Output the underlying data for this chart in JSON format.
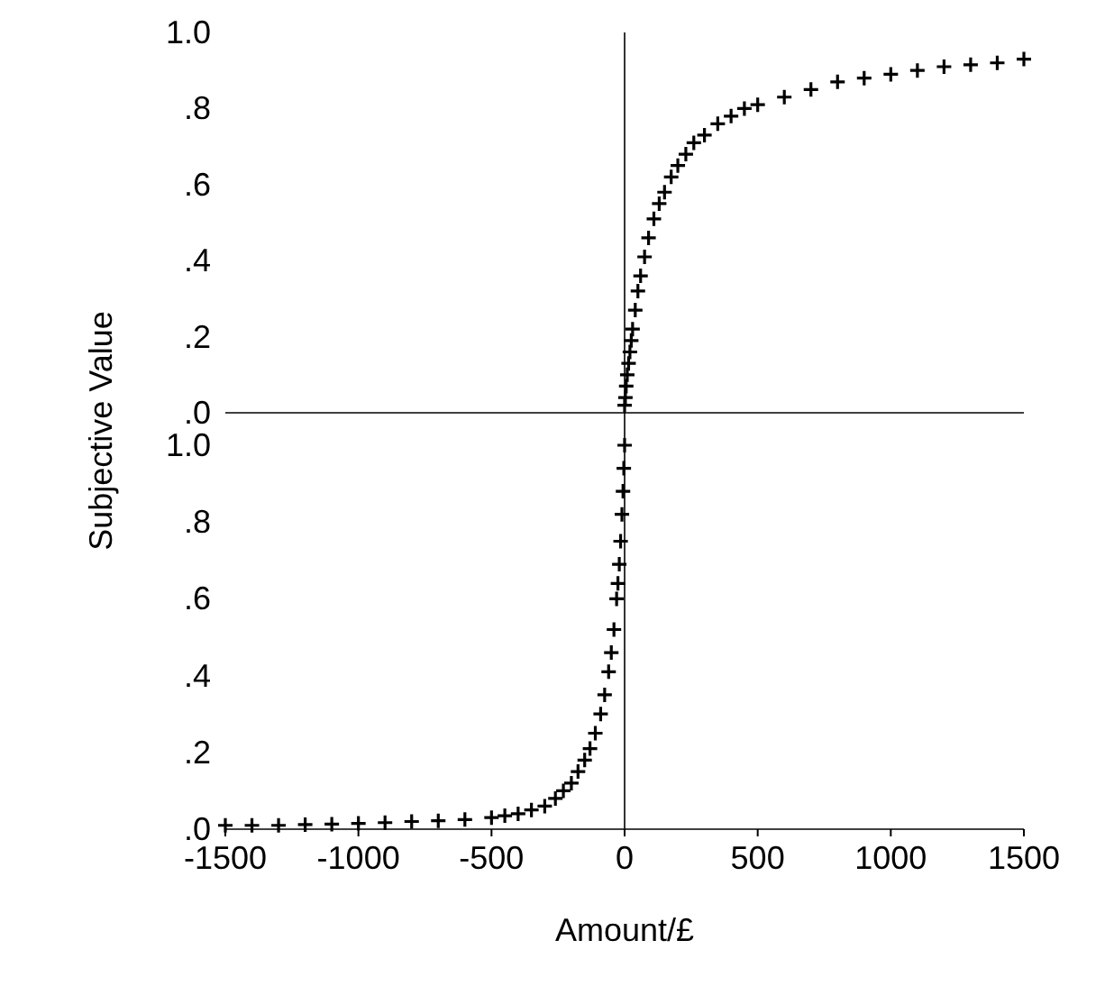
{
  "chart_data": [
    {
      "type": "scatter",
      "ylabel": "Subjective Value",
      "xlim": [
        -1500,
        1500
      ],
      "ylim": [
        0,
        1
      ],
      "yticks": [
        {
          "value": 0,
          "label": ".0"
        },
        {
          "value": 0.2,
          "label": ".2"
        },
        {
          "value": 0.4,
          "label": ".4"
        },
        {
          "value": 0.6,
          "label": ".6"
        },
        {
          "value": 0.8,
          "label": ".8"
        },
        {
          "value": 1,
          "label": "1.0"
        }
      ],
      "tick_labels": "y",
      "marker": "cross",
      "series": [
        {
          "color": "#000000",
          "x": [
            0,
            3,
            6,
            10,
            15,
            20,
            25,
            30,
            40,
            50,
            60,
            75,
            90,
            110,
            130,
            150,
            175,
            200,
            230,
            260,
            300,
            350,
            400,
            450,
            500,
            600,
            700,
            800,
            900,
            1000,
            1100,
            1200,
            1300,
            1400,
            1500
          ],
          "values": [
            0.02,
            0.04,
            0.07,
            0.1,
            0.13,
            0.16,
            0.19,
            0.22,
            0.27,
            0.32,
            0.36,
            0.41,
            0.46,
            0.51,
            0.55,
            0.58,
            0.62,
            0.65,
            0.68,
            0.71,
            0.73,
            0.76,
            0.78,
            0.8,
            0.81,
            0.83,
            0.85,
            0.87,
            0.88,
            0.89,
            0.9,
            0.91,
            0.915,
            0.92,
            0.93
          ]
        }
      ]
    },
    {
      "type": "scatter",
      "xlabel": "Amount/£",
      "xlim": [
        -1500,
        1500
      ],
      "ylim": [
        0,
        1
      ],
      "xticks": [
        -1500,
        -1000,
        -500,
        0,
        500,
        1000,
        1500
      ],
      "yticks": [
        {
          "value": 0,
          "label": ".0"
        },
        {
          "value": 0.2,
          "label": ".2"
        },
        {
          "value": 0.4,
          "label": ".4"
        },
        {
          "value": 0.6,
          "label": ".6"
        },
        {
          "value": 0.8,
          "label": ".8"
        },
        {
          "value": 1,
          "label": "1.0"
        }
      ],
      "marker": "cross",
      "series": [
        {
          "color": "#000000",
          "x": [
            -1500,
            -1400,
            -1300,
            -1200,
            -1100,
            -1000,
            -900,
            -800,
            -700,
            -600,
            -500,
            -450,
            -400,
            -350,
            -300,
            -260,
            -230,
            -200,
            -175,
            -150,
            -130,
            -110,
            -90,
            -75,
            -60,
            -50,
            -40,
            -30,
            -25,
            -20,
            -15,
            -10,
            -6,
            -3,
            0
          ],
          "values": [
            0.01,
            0.01,
            0.01,
            0.012,
            0.013,
            0.015,
            0.017,
            0.02,
            0.022,
            0.025,
            0.03,
            0.035,
            0.04,
            0.05,
            0.06,
            0.08,
            0.1,
            0.12,
            0.15,
            0.18,
            0.21,
            0.25,
            0.3,
            0.35,
            0.41,
            0.46,
            0.52,
            0.6,
            0.64,
            0.69,
            0.75,
            0.82,
            0.88,
            0.94,
            1.0
          ]
        }
      ]
    }
  ]
}
